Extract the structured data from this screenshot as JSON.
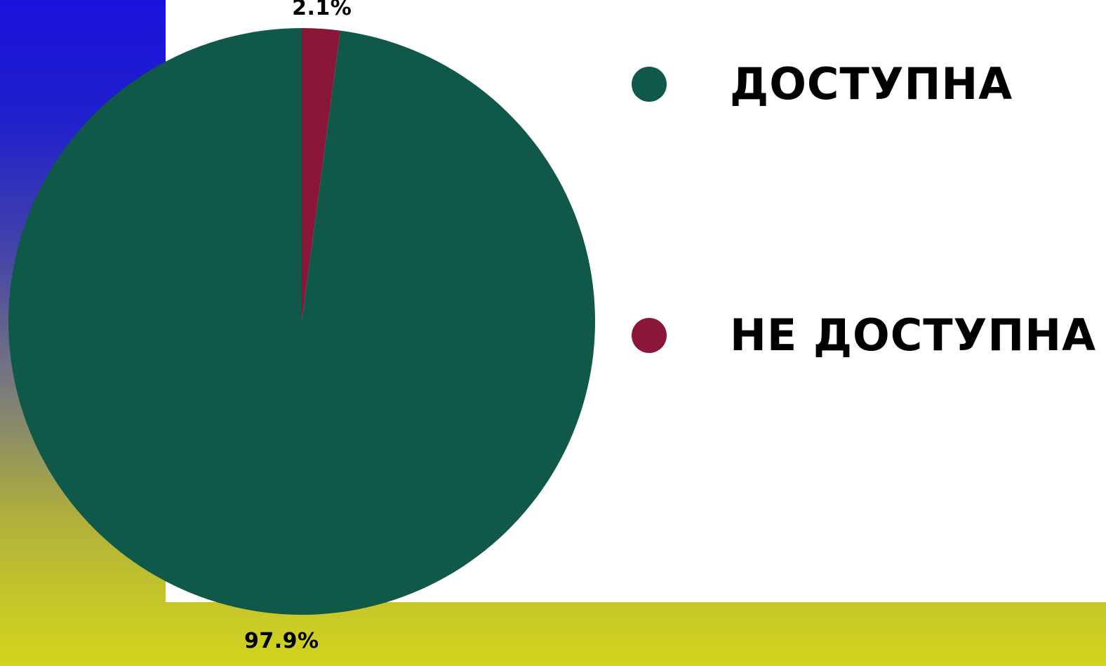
{
  "colors": {
    "available": "#10594a",
    "unavailable": "#8a1638",
    "blue": "#1a12dc",
    "yellow": "#d4d81a"
  },
  "chart_data": {
    "type": "pie",
    "title": "",
    "slices": [
      {
        "name": "ДОСТУПНА",
        "value": 97.9,
        "label": "97.9%",
        "color": "#10594a"
      },
      {
        "name": "НЕ ДОСТУПНА",
        "value": 2.1,
        "label": "2.1%",
        "color": "#8a1638"
      }
    ],
    "start_angle_deg": 0,
    "direction": "counterclockwise",
    "legend_placement": "right"
  },
  "legend": {
    "items": [
      {
        "label": "ДОСТУПНА",
        "color": "#10594a"
      },
      {
        "label": "НЕ ДОСТУПНА",
        "color": "#8a1638"
      }
    ]
  }
}
